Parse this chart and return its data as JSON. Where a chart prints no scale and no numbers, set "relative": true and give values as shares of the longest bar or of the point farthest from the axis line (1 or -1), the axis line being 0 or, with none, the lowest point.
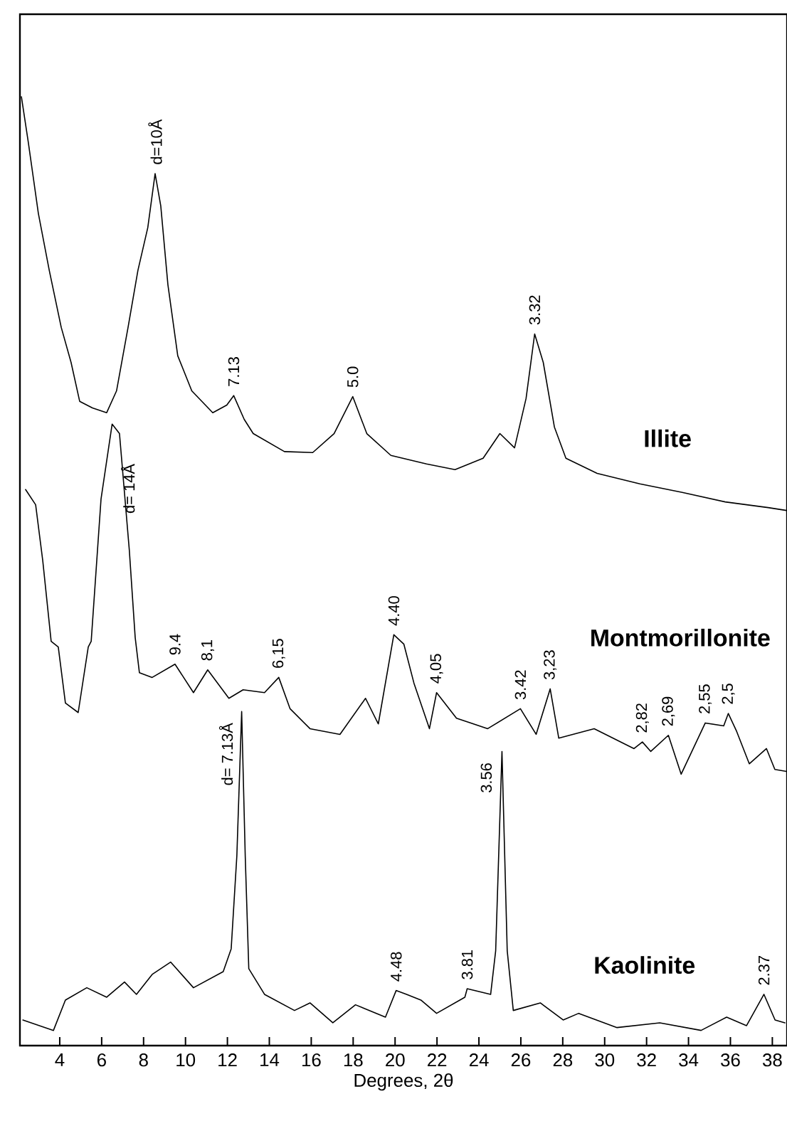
{
  "chart_data": {
    "type": "line",
    "relative": true,
    "xlabel": "Degrees, 2θ",
    "xlim": [
      2.1,
      38.7
    ],
    "xticks": [
      4,
      6,
      8,
      10,
      12,
      14,
      16,
      18,
      20,
      22,
      24,
      26,
      28,
      30,
      32,
      34,
      36,
      38
    ],
    "tick_labels": "x",
    "line_style": "solid",
    "series": [
      {
        "name": "**Illite**",
        "color": "#000000",
        "x": [
          2.17,
          2.5,
          2.98,
          3.5,
          4.07,
          4.54,
          4.95,
          5.56,
          6.24,
          6.71,
          7.26,
          7.73,
          8.2,
          8.55,
          8.82,
          9.16,
          9.63,
          10.3,
          11.3,
          11.97,
          12.3,
          12.8,
          13.23,
          14.72,
          16.07,
          17.09,
          17.98,
          18.65,
          19.8,
          21.5,
          22.86,
          24.2,
          25.0,
          25.7,
          26.25,
          26.66,
          27.07,
          27.6,
          28.15,
          29.64,
          31.68,
          33.7,
          35.75,
          37.8,
          38.67
        ],
        "values": [
          1.0,
          0.952,
          0.877,
          0.817,
          0.757,
          0.72,
          0.679,
          0.672,
          0.667,
          0.69,
          0.757,
          0.817,
          0.862,
          0.919,
          0.885,
          0.802,
          0.727,
          0.69,
          0.667,
          0.675,
          0.685,
          0.66,
          0.645,
          0.626,
          0.625,
          0.645,
          0.684,
          0.645,
          0.622,
          0.613,
          0.607,
          0.619,
          0.645,
          0.63,
          0.682,
          0.75,
          0.72,
          0.652,
          0.619,
          0.603,
          0.592,
          0.583,
          0.573,
          0.567,
          0.564
        ]
      },
      {
        "name": "**Montmorillonite**",
        "color": "#000000",
        "x": [
          2.37,
          2.85,
          3.19,
          3.59,
          3.93,
          4.27,
          4.88,
          5.36,
          5.5,
          5.97,
          6.5,
          6.85,
          7.32,
          7.6,
          7.8,
          8.41,
          9.5,
          10.38,
          11.06,
          12.07,
          12.75,
          13.77,
          14.45,
          14.99,
          15.94,
          17.37,
          18.59,
          19.2,
          19.94,
          20.42,
          20.9,
          21.64,
          21.98,
          22.93,
          24.42,
          25.98,
          26.73,
          27.4,
          27.81,
          29.5,
          31.4,
          31.8,
          32.2,
          33.04,
          33.65,
          34.8,
          35.68,
          35.9,
          36.3,
          36.9,
          37.72,
          38.12,
          38.67
        ],
        "values": [
          0.586,
          0.57,
          0.511,
          0.426,
          0.42,
          0.361,
          0.351,
          0.42,
          0.426,
          0.576,
          0.655,
          0.645,
          0.522,
          0.43,
          0.393,
          0.388,
          0.402,
          0.372,
          0.396,
          0.366,
          0.375,
          0.372,
          0.388,
          0.355,
          0.334,
          0.328,
          0.366,
          0.339,
          0.433,
          0.423,
          0.382,
          0.334,
          0.372,
          0.345,
          0.334,
          0.355,
          0.328,
          0.376,
          0.324,
          0.334,
          0.313,
          0.32,
          0.31,
          0.327,
          0.286,
          0.34,
          0.337,
          0.35,
          0.331,
          0.297,
          0.313,
          0.291,
          0.289
        ]
      },
      {
        "name": "**Kaolinite**",
        "color": "#000000",
        "x": [
          2.24,
          3.7,
          4.27,
          5.29,
          6.24,
          7.09,
          7.66,
          8.41,
          9.29,
          10.38,
          11.8,
          12.18,
          12.45,
          12.68,
          12.85,
          13.02,
          13.77,
          15.2,
          15.94,
          17.03,
          18.11,
          19.54,
          20.05,
          20.55,
          21.23,
          21.98,
          23.33,
          23.44,
          24.56,
          24.8,
          25.1,
          25.35,
          25.64,
          26.93,
          28.02,
          28.76,
          30.59,
          32.63,
          34.6,
          35.82,
          36.77,
          37.6,
          38.13,
          38.6
        ],
        "values": [
          0.027,
          0.016,
          0.048,
          0.061,
          0.051,
          0.067,
          0.054,
          0.075,
          0.088,
          0.061,
          0.078,
          0.102,
          0.2,
          0.352,
          0.2,
          0.081,
          0.054,
          0.037,
          0.045,
          0.024,
          0.043,
          0.03,
          0.058,
          0.054,
          0.048,
          0.034,
          0.051,
          0.06,
          0.054,
          0.1,
          0.31,
          0.1,
          0.037,
          0.045,
          0.027,
          0.034,
          0.019,
          0.024,
          0.016,
          0.03,
          0.021,
          0.054,
          0.027,
          0.024
        ]
      }
    ],
    "annotations": [
      {
        "text": "d=10Å",
        "x": 8.55,
        "y": 0.919
      },
      {
        "text": "7.13",
        "x": 12.3,
        "y": 0.685
      },
      {
        "text": "5.0",
        "x": 17.98,
        "y": 0.684
      },
      {
        "text": "3.32",
        "x": 26.66,
        "y": 0.75
      },
      {
        "text": "d= 14Å",
        "x": 6.5,
        "y": 0.655
      },
      {
        "text": "9.4",
        "x": 9.5,
        "y": 0.402
      },
      {
        "text": "8,1",
        "x": 11.06,
        "y": 0.396
      },
      {
        "text": "6,15",
        "x": 14.45,
        "y": 0.388
      },
      {
        "text": "4.40",
        "x": 19.94,
        "y": 0.433
      },
      {
        "text": "4,05",
        "x": 21.98,
        "y": 0.372
      },
      {
        "text": "3.42",
        "x": 25.98,
        "y": 0.355
      },
      {
        "text": "3,23",
        "x": 27.4,
        "y": 0.376
      },
      {
        "text": "2,82",
        "x": 31.8,
        "y": 0.32
      },
      {
        "text": "2,69",
        "x": 33.04,
        "y": 0.327
      },
      {
        "text": "2,55",
        "x": 34.8,
        "y": 0.34
      },
      {
        "text": "2,5",
        "x": 35.9,
        "y": 0.35
      },
      {
        "text": "d= 7.13Å",
        "x": 12.68,
        "y": 0.352
      },
      {
        "text": "4.48",
        "x": 20.05,
        "y": 0.058
      },
      {
        "text": "3.81",
        "x": 23.44,
        "y": 0.06
      },
      {
        "text": "3.56",
        "x": 25.1,
        "y": 0.31
      },
      {
        "text": "2.37",
        "x": 37.6,
        "y": 0.054
      }
    ]
  }
}
